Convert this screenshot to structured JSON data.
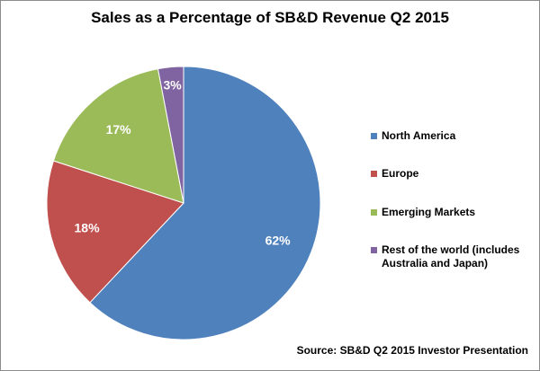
{
  "chart_data": {
    "type": "pie",
    "title": "Sales as a Percentage of SB&D Revenue Q2 2015",
    "slices": [
      {
        "name": "North America",
        "value": 62,
        "label": "62%",
        "color": "#4f81bd"
      },
      {
        "name": "Europe",
        "value": 18,
        "label": "18%",
        "color": "#c0504d"
      },
      {
        "name": "Emerging Markets",
        "value": 17,
        "label": "17%",
        "color": "#9bbb59"
      },
      {
        "name": "Rest of the world (includes Australia and Japan)",
        "value": 3,
        "label": "3%",
        "color": "#8064a2"
      }
    ],
    "legend_position": "right",
    "source": "Source: SB&D Q2 2015  Investor Presentation"
  }
}
